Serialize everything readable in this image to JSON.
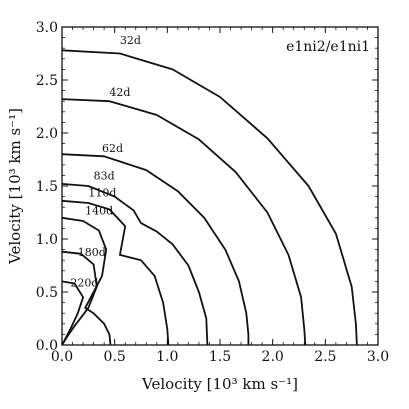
{
  "chart_data": {
    "type": "line",
    "panel_label": "e1ni2/e1ni1",
    "xlabel": "Velocity [10³ km s⁻¹]",
    "ylabel": "Velocity [10³ km s⁻¹]",
    "xlim": [
      0.0,
      3.0
    ],
    "ylim": [
      0.0,
      3.0
    ],
    "xticks": [
      "0.0",
      "0.5",
      "1.0",
      "1.5",
      "2.0",
      "2.5",
      "3.0"
    ],
    "yticks": [
      "0.0",
      "0.5",
      "1.0",
      "1.5",
      "2.0",
      "2.5",
      "3.0"
    ],
    "grid": false,
    "series": [
      {
        "name": "32d",
        "label_at": [
          0.55,
          2.84
        ],
        "points": [
          [
            0,
            2.78
          ],
          [
            0.55,
            2.75
          ],
          [
            1.05,
            2.6
          ],
          [
            1.5,
            2.34
          ],
          [
            1.95,
            1.95
          ],
          [
            2.34,
            1.5
          ],
          [
            2.6,
            1.05
          ],
          [
            2.75,
            0.55
          ],
          [
            2.79,
            0.2
          ],
          [
            2.8,
            0
          ]
        ]
      },
      {
        "name": "42d",
        "label_at": [
          0.45,
          2.35
        ],
        "points": [
          [
            0,
            2.32
          ],
          [
            0.45,
            2.3
          ],
          [
            0.9,
            2.17
          ],
          [
            1.3,
            1.94
          ],
          [
            1.65,
            1.63
          ],
          [
            1.95,
            1.25
          ],
          [
            2.15,
            0.85
          ],
          [
            2.27,
            0.45
          ],
          [
            2.3,
            0.15
          ],
          [
            2.31,
            0
          ]
        ]
      },
      {
        "name": "62d",
        "label_at": [
          0.38,
          1.82
        ],
        "points": [
          [
            0,
            1.8
          ],
          [
            0.4,
            1.78
          ],
          [
            0.8,
            1.65
          ],
          [
            1.1,
            1.45
          ],
          [
            1.35,
            1.2
          ],
          [
            1.55,
            0.9
          ],
          [
            1.68,
            0.6
          ],
          [
            1.75,
            0.3
          ],
          [
            1.77,
            0.1
          ],
          [
            1.77,
            0
          ]
        ]
      },
      {
        "name": "83d",
        "label_at": [
          0.3,
          1.56
        ],
        "points": [
          [
            0,
            1.52
          ],
          [
            0.25,
            1.5
          ],
          [
            0.5,
            1.4
          ],
          [
            0.68,
            1.27
          ],
          [
            0.75,
            1.15
          ],
          [
            0.9,
            1.07
          ],
          [
            1.05,
            0.95
          ],
          [
            1.2,
            0.75
          ],
          [
            1.3,
            0.5
          ],
          [
            1.37,
            0.25
          ],
          [
            1.38,
            0
          ]
        ]
      },
      {
        "name": "110d",
        "label_at": [
          0.25,
          1.4
        ],
        "points": [
          [
            0,
            1.36
          ],
          [
            0.25,
            1.34
          ],
          [
            0.45,
            1.28
          ],
          [
            0.6,
            1.12
          ],
          [
            0.55,
            0.85
          ],
          [
            0.75,
            0.8
          ],
          [
            0.88,
            0.65
          ],
          [
            0.96,
            0.4
          ],
          [
            1.0,
            0.15
          ],
          [
            1.01,
            0
          ]
        ]
      },
      {
        "name": "140d",
        "label_at": [
          0.22,
          1.23
        ],
        "points": [
          [
            0,
            1.2
          ],
          [
            0.2,
            1.17
          ],
          [
            0.35,
            1.08
          ],
          [
            0.42,
            0.9
          ],
          [
            0.38,
            0.65
          ],
          [
            0.22,
            0.35
          ],
          [
            0.3,
            0.3
          ],
          [
            0.4,
            0.2
          ],
          [
            0.45,
            0.1
          ],
          [
            0.46,
            0
          ]
        ]
      },
      {
        "name": "180d",
        "label_at": [
          0.15,
          0.84
        ],
        "points": [
          [
            0,
            0.88
          ],
          [
            0.18,
            0.86
          ],
          [
            0.3,
            0.76
          ],
          [
            0.33,
            0.55
          ],
          [
            0.25,
            0.35
          ],
          [
            0.12,
            0.18
          ],
          [
            0.05,
            0.08
          ],
          [
            0,
            0
          ]
        ]
      },
      {
        "name": "220d",
        "label_at": [
          0.08,
          0.55
        ],
        "points": [
          [
            0,
            0.6
          ],
          [
            0.12,
            0.58
          ],
          [
            0.2,
            0.45
          ],
          [
            0.15,
            0.3
          ],
          [
            0.08,
            0.15
          ],
          [
            0,
            0
          ]
        ]
      }
    ]
  }
}
